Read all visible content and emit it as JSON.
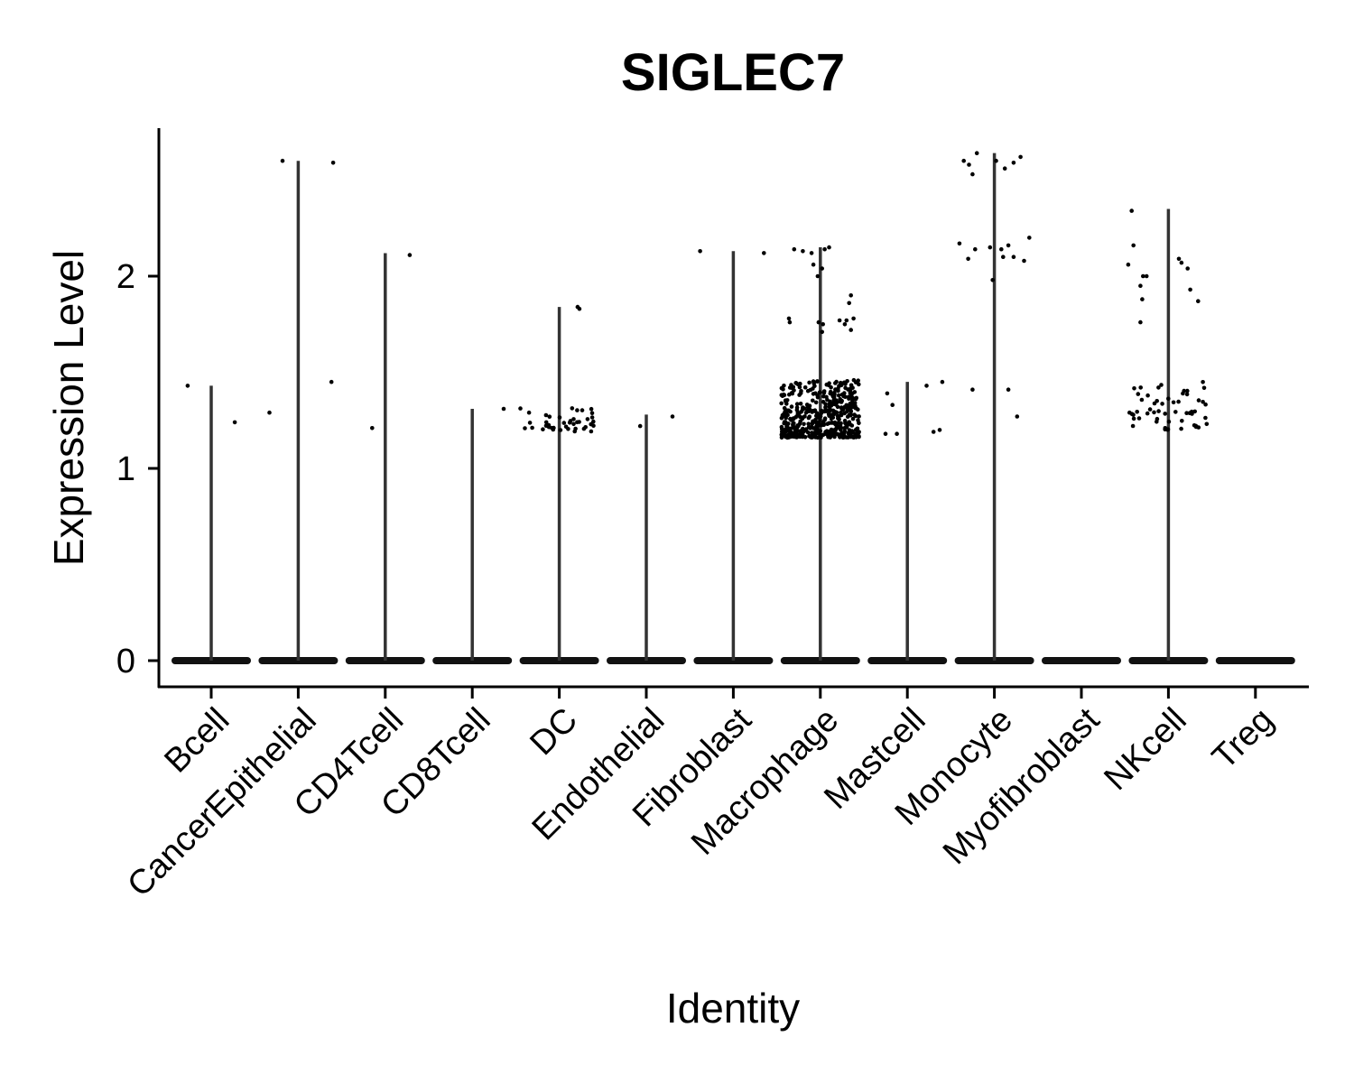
{
  "chart_data": {
    "type": "violin",
    "title": "SIGLEC7",
    "xlabel": "Identity",
    "ylabel": "Expression Level",
    "ylim": [
      -0.13,
      2.75
    ],
    "yticks": [
      0,
      1,
      2
    ],
    "grid": false,
    "legend": "none",
    "categories": [
      "Bcell",
      "CancerEpithelial",
      "CD4Tcell",
      "CD8Tcell",
      "DC",
      "Endothelial",
      "Fibroblast",
      "Macrophage",
      "Mastcell",
      "Monocyte",
      "Myofibroblast",
      "NKcell",
      "Treg"
    ],
    "max_expression": [
      1.43,
      2.6,
      2.12,
      1.31,
      1.84,
      1.28,
      2.13,
      2.15,
      1.45,
      2.64,
      0,
      2.35,
      0
    ],
    "dense_cluster": [
      null,
      null,
      null,
      null,
      {
        "low": 1.19,
        "high": 1.33,
        "count": 42
      },
      null,
      null,
      {
        "low": 1.16,
        "high": 1.46,
        "count": 480
      },
      null,
      null,
      null,
      {
        "low": 1.2,
        "high": 1.46,
        "count": 55
      },
      null
    ],
    "points": {
      "Bcell": [
        [
          -0.27,
          1.43
        ],
        [
          0.27,
          1.24
        ]
      ],
      "CancerEpithelial": [
        [
          -0.18,
          2.6
        ],
        [
          0.4,
          2.59
        ],
        [
          -0.33,
          1.29
        ],
        [
          0.38,
          1.45
        ]
      ],
      "CD4Tcell": [
        [
          0.28,
          2.11
        ],
        [
          -0.15,
          1.21
        ]
      ],
      "CD8Tcell": [
        [
          0.36,
          1.31
        ]
      ],
      "DC": [
        [
          0.21,
          1.84
        ],
        [
          0.23,
          1.83
        ]
      ],
      "Endothelial": [
        [
          -0.07,
          1.22
        ],
        [
          0.3,
          1.27
        ]
      ],
      "Fibroblast": [
        [
          -0.38,
          2.13
        ],
        [
          0.35,
          2.12
        ]
      ],
      "Macrophage": [
        [
          -0.3,
          2.14
        ],
        [
          -0.2,
          2.13
        ],
        [
          -0.1,
          2.12
        ],
        [
          0.05,
          2.14
        ],
        [
          0.1,
          2.15
        ],
        [
          -0.08,
          2.06
        ],
        [
          0.02,
          2.04
        ],
        [
          -0.03,
          2.0
        ],
        [
          0.35,
          1.9
        ],
        [
          0.33,
          1.86
        ],
        [
          -0.36,
          1.78
        ],
        [
          -0.35,
          1.76
        ],
        [
          -0.02,
          1.76
        ],
        [
          0.03,
          1.75
        ],
        [
          0.22,
          1.77
        ],
        [
          0.3,
          1.77
        ],
        [
          0.38,
          1.78
        ],
        [
          0.28,
          1.75
        ],
        [
          0.02,
          1.71
        ],
        [
          0.35,
          1.72
        ]
      ],
      "Mastcell": [
        [
          -0.23,
          1.39
        ],
        [
          -0.17,
          1.33
        ],
        [
          -0.25,
          1.18
        ],
        [
          0.22,
          1.43
        ],
        [
          0.4,
          1.45
        ],
        [
          -0.12,
          1.18
        ],
        [
          0.3,
          1.19
        ],
        [
          0.37,
          1.2
        ]
      ],
      "Monocyte": [
        [
          -0.29,
          2.58
        ],
        [
          -0.35,
          2.6
        ],
        [
          -0.25,
          2.53
        ],
        [
          -0.2,
          2.64
        ],
        [
          0.02,
          2.6
        ],
        [
          0.12,
          2.56
        ],
        [
          0.22,
          2.59
        ],
        [
          0.3,
          2.62
        ],
        [
          0.4,
          2.2
        ],
        [
          -0.4,
          2.17
        ],
        [
          -0.22,
          2.14
        ],
        [
          0.08,
          2.14
        ],
        [
          -0.05,
          2.15
        ],
        [
          0.16,
          2.16
        ],
        [
          -0.3,
          2.09
        ],
        [
          0.22,
          2.1
        ],
        [
          0.1,
          2.1
        ],
        [
          0.34,
          2.08
        ],
        [
          -0.02,
          1.98
        ],
        [
          -0.25,
          1.41
        ],
        [
          0.16,
          1.41
        ],
        [
          0.26,
          1.27
        ]
      ],
      "NKcell": [
        [
          -0.42,
          2.34
        ],
        [
          -0.4,
          2.16
        ],
        [
          -0.46,
          2.06
        ],
        [
          -0.29,
          2.0
        ],
        [
          -0.25,
          2.0
        ],
        [
          0.12,
          2.09
        ],
        [
          0.15,
          2.07
        ],
        [
          0.22,
          2.04
        ],
        [
          -0.32,
          1.95
        ],
        [
          -0.3,
          1.88
        ],
        [
          0.25,
          1.93
        ],
        [
          0.34,
          1.87
        ],
        [
          -0.32,
          1.76
        ]
      ]
    }
  }
}
